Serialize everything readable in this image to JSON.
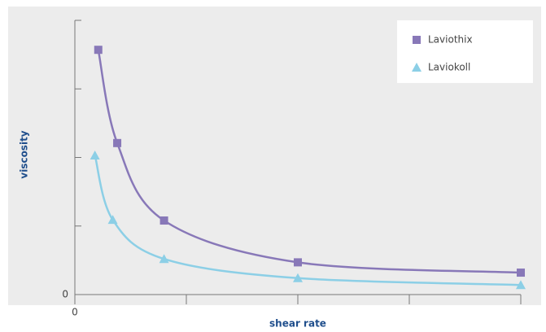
{
  "chart_data": {
    "type": "line",
    "x_label": "shear rate",
    "y_label": "viscosity",
    "xlim": [
      0,
      4
    ],
    "ylim": [
      0,
      4
    ],
    "xticks": [
      0,
      {
        "value": 1,
        "label": null
      },
      {
        "value": 2,
        "label": null
      },
      {
        "value": 3,
        "label": null
      },
      {
        "value": 4,
        "label": null
      }
    ],
    "yticks": [
      0,
      {
        "value": 1,
        "label": null
      },
      {
        "value": 2,
        "label": null
      },
      {
        "value": 3,
        "label": null
      },
      {
        "value": 4,
        "label": null
      }
    ],
    "legend": "top-right",
    "series": [
      {
        "name": "Laviothix",
        "color": "#8878b8",
        "marker": "square",
        "x": [
          0.21,
          0.38,
          0.8,
          2.0,
          4.0
        ],
        "values": [
          3.57,
          2.21,
          1.08,
          0.47,
          0.32
        ]
      },
      {
        "name": "Laviokoll",
        "color": "#8ccfe6",
        "marker": "triangle",
        "x": [
          0.18,
          0.34,
          0.8,
          2.0,
          4.0
        ],
        "values": [
          2.03,
          1.09,
          0.52,
          0.24,
          0.14
        ]
      }
    ]
  }
}
